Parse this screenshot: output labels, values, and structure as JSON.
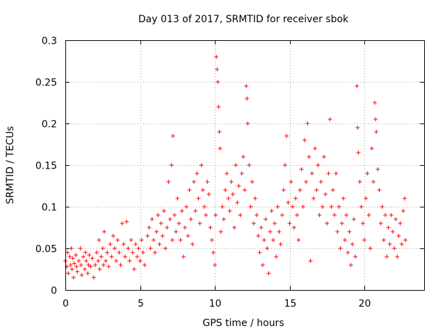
{
  "chart_data": {
    "type": "scatter",
    "title": "Day 013 of 2017, SRMTID for receiver sbok",
    "xlabel": "GPS time / hours",
    "ylabel": "SRMTID / TECUs",
    "xlim": [
      0,
      24
    ],
    "ylim": [
      0,
      0.3
    ],
    "xticks": [
      0,
      5,
      10,
      15,
      20
    ],
    "xtick_labels": [
      "0",
      "5",
      "10",
      "15",
      "20"
    ],
    "yticks": [
      0,
      0.05,
      0.1,
      0.15,
      0.2,
      0.25,
      0.3
    ],
    "ytick_labels": [
      "0",
      "0.05",
      "0.1",
      "0.15",
      "0.2",
      "0.25",
      "0.3"
    ],
    "grid": true,
    "marker": "plus",
    "series": [
      {
        "name": "SRMTID",
        "color": "#ff0000",
        "points": [
          [
            0.0,
            0.035
          ],
          [
            0.1,
            0.028
          ],
          [
            0.15,
            0.045
          ],
          [
            0.2,
            0.02
          ],
          [
            0.3,
            0.04
          ],
          [
            0.35,
            0.03
          ],
          [
            0.4,
            0.05
          ],
          [
            0.45,
            0.025
          ],
          [
            0.5,
            0.038
          ],
          [
            0.55,
            0.015
          ],
          [
            0.6,
            0.032
          ],
          [
            0.7,
            0.042
          ],
          [
            0.75,
            0.028
          ],
          [
            0.8,
            0.022
          ],
          [
            0.9,
            0.035
          ],
          [
            1.0,
            0.05
          ],
          [
            1.05,
            0.03
          ],
          [
            1.1,
            0.018
          ],
          [
            1.2,
            0.04
          ],
          [
            1.3,
            0.025
          ],
          [
            1.35,
            0.045
          ],
          [
            1.4,
            0.035
          ],
          [
            1.5,
            0.02
          ],
          [
            1.55,
            0.03
          ],
          [
            1.6,
            0.042
          ],
          [
            1.7,
            0.028
          ],
          [
            1.8,
            0.038
          ],
          [
            1.9,
            0.015
          ],
          [
            2.0,
            0.03
          ],
          [
            2.1,
            0.045
          ],
          [
            2.2,
            0.035
          ],
          [
            2.25,
            0.06
          ],
          [
            2.3,
            0.025
          ],
          [
            2.4,
            0.04
          ],
          [
            2.5,
            0.05
          ],
          [
            2.55,
            0.03
          ],
          [
            2.6,
            0.07
          ],
          [
            2.7,
            0.035
          ],
          [
            2.8,
            0.045
          ],
          [
            2.9,
            0.028
          ],
          [
            3.0,
            0.055
          ],
          [
            3.1,
            0.04
          ],
          [
            3.2,
            0.065
          ],
          [
            3.3,
            0.05
          ],
          [
            3.4,
            0.035
          ],
          [
            3.5,
            0.06
          ],
          [
            3.6,
            0.045
          ],
          [
            3.7,
            0.03
          ],
          [
            3.8,
            0.08
          ],
          [
            3.9,
            0.055
          ],
          [
            4.0,
            0.04
          ],
          [
            4.1,
            0.082
          ],
          [
            4.2,
            0.05
          ],
          [
            4.3,
            0.035
          ],
          [
            4.4,
            0.06
          ],
          [
            4.5,
            0.045
          ],
          [
            4.6,
            0.025
          ],
          [
            4.7,
            0.055
          ],
          [
            4.8,
            0.04
          ],
          [
            4.9,
            0.05
          ],
          [
            5.0,
            0.035
          ],
          [
            5.1,
            0.06
          ],
          [
            5.2,
            0.045
          ],
          [
            5.3,
            0.03
          ],
          [
            5.5,
            0.065
          ],
          [
            5.6,
            0.075
          ],
          [
            5.7,
            0.05
          ],
          [
            5.8,
            0.085
          ],
          [
            5.9,
            0.06
          ],
          [
            6.0,
            0.045
          ],
          [
            6.1,
            0.07
          ],
          [
            6.2,
            0.09
          ],
          [
            6.3,
            0.055
          ],
          [
            6.4,
            0.08
          ],
          [
            6.5,
            0.065
          ],
          [
            6.6,
            0.095
          ],
          [
            6.7,
            0.05
          ],
          [
            6.8,
            0.075
          ],
          [
            6.9,
            0.13
          ],
          [
            7.0,
            0.085
          ],
          [
            7.1,
            0.15
          ],
          [
            7.15,
            0.06
          ],
          [
            7.2,
            0.185
          ],
          [
            7.3,
            0.09
          ],
          [
            7.4,
            0.07
          ],
          [
            7.5,
            0.11
          ],
          [
            7.6,
            0.08
          ],
          [
            7.7,
            0.06
          ],
          [
            7.8,
            0.095
          ],
          [
            7.9,
            0.04
          ],
          [
            8.0,
            0.075
          ],
          [
            8.1,
            0.1
          ],
          [
            8.2,
            0.065
          ],
          [
            8.3,
            0.12
          ],
          [
            8.4,
            0.085
          ],
          [
            8.5,
            0.055
          ],
          [
            8.6,
            0.13
          ],
          [
            8.7,
            0.095
          ],
          [
            8.8,
            0.14
          ],
          [
            8.9,
            0.11
          ],
          [
            9.0,
            0.08
          ],
          [
            9.1,
            0.15
          ],
          [
            9.2,
            0.12
          ],
          [
            9.3,
            0.1
          ],
          [
            9.4,
            0.09
          ],
          [
            9.5,
            0.13
          ],
          [
            9.6,
            0.115
          ],
          [
            9.7,
            0.075
          ],
          [
            9.8,
            0.06
          ],
          [
            9.9,
            0.045
          ],
          [
            10.0,
            0.03
          ],
          [
            10.05,
            0.09
          ],
          [
            10.1,
            0.28
          ],
          [
            10.15,
            0.265
          ],
          [
            10.2,
            0.25
          ],
          [
            10.25,
            0.22
          ],
          [
            10.3,
            0.19
          ],
          [
            10.35,
            0.17
          ],
          [
            10.4,
            0.07
          ],
          [
            10.5,
            0.1
          ],
          [
            10.6,
            0.085
          ],
          [
            10.7,
            0.12
          ],
          [
            10.8,
            0.14
          ],
          [
            10.9,
            0.11
          ],
          [
            11.0,
            0.095
          ],
          [
            11.1,
            0.13
          ],
          [
            11.2,
            0.115
          ],
          [
            11.3,
            0.075
          ],
          [
            11.4,
            0.15
          ],
          [
            11.5,
            0.105
          ],
          [
            11.6,
            0.125
          ],
          [
            11.7,
            0.09
          ],
          [
            11.8,
            0.14
          ],
          [
            11.9,
            0.16
          ],
          [
            12.0,
            0.12
          ],
          [
            12.1,
            0.245
          ],
          [
            12.15,
            0.23
          ],
          [
            12.2,
            0.2
          ],
          [
            12.3,
            0.15
          ],
          [
            12.4,
            0.1
          ],
          [
            12.5,
            0.13
          ],
          [
            12.6,
            0.08
          ],
          [
            12.7,
            0.11
          ],
          [
            12.8,
            0.09
          ],
          [
            12.9,
            0.065
          ],
          [
            13.0,
            0.045
          ],
          [
            13.1,
            0.075
          ],
          [
            13.2,
            0.03
          ],
          [
            13.3,
            0.06
          ],
          [
            13.4,
            0.085
          ],
          [
            13.5,
            0.05
          ],
          [
            13.6,
            0.02
          ],
          [
            13.7,
            0.07
          ],
          [
            13.8,
            0.095
          ],
          [
            13.9,
            0.06
          ],
          [
            14.0,
            0.08
          ],
          [
            14.1,
            0.04
          ],
          [
            14.2,
            0.1
          ],
          [
            14.3,
            0.07
          ],
          [
            14.4,
            0.055
          ],
          [
            14.5,
            0.09
          ],
          [
            14.6,
            0.12
          ],
          [
            14.7,
            0.15
          ],
          [
            14.8,
            0.185
          ],
          [
            14.9,
            0.105
          ],
          [
            15.0,
            0.08
          ],
          [
            15.1,
            0.13
          ],
          [
            15.2,
            0.1
          ],
          [
            15.3,
            0.075
          ],
          [
            15.4,
            0.11
          ],
          [
            15.5,
            0.09
          ],
          [
            15.6,
            0.06
          ],
          [
            15.7,
            0.12
          ],
          [
            15.8,
            0.145
          ],
          [
            15.9,
            0.1
          ],
          [
            16.0,
            0.18
          ],
          [
            16.1,
            0.13
          ],
          [
            16.2,
            0.2
          ],
          [
            16.3,
            0.16
          ],
          [
            16.4,
            0.035
          ],
          [
            16.5,
            0.14
          ],
          [
            16.6,
            0.11
          ],
          [
            16.7,
            0.17
          ],
          [
            16.8,
            0.12
          ],
          [
            16.9,
            0.15
          ],
          [
            17.0,
            0.09
          ],
          [
            17.1,
            0.13
          ],
          [
            17.2,
            0.1
          ],
          [
            17.3,
            0.16
          ],
          [
            17.4,
            0.115
          ],
          [
            17.5,
            0.08
          ],
          [
            17.6,
            0.14
          ],
          [
            17.7,
            0.205
          ],
          [
            17.8,
            0.1
          ],
          [
            17.9,
            0.12
          ],
          [
            18.0,
            0.09
          ],
          [
            18.1,
            0.14
          ],
          [
            18.2,
            0.07
          ],
          [
            18.3,
            0.1
          ],
          [
            18.4,
            0.05
          ],
          [
            18.5,
            0.08
          ],
          [
            18.6,
            0.11
          ],
          [
            18.7,
            0.06
          ],
          [
            18.8,
            0.09
          ],
          [
            18.9,
            0.045
          ],
          [
            19.0,
            0.07
          ],
          [
            19.1,
            0.03
          ],
          [
            19.2,
            0.055
          ],
          [
            19.3,
            0.085
          ],
          [
            19.4,
            0.04
          ],
          [
            19.5,
            0.245
          ],
          [
            19.55,
            0.195
          ],
          [
            19.6,
            0.165
          ],
          [
            19.7,
            0.13
          ],
          [
            19.8,
            0.1
          ],
          [
            19.9,
            0.08
          ],
          [
            20.0,
            0.06
          ],
          [
            20.1,
            0.11
          ],
          [
            20.2,
            0.14
          ],
          [
            20.3,
            0.09
          ],
          [
            20.4,
            0.05
          ],
          [
            20.5,
            0.17
          ],
          [
            20.6,
            0.13
          ],
          [
            20.7,
            0.225
          ],
          [
            20.75,
            0.205
          ],
          [
            20.8,
            0.19
          ],
          [
            20.9,
            0.145
          ],
          [
            21.0,
            0.12
          ],
          [
            21.1,
            0.08
          ],
          [
            21.2,
            0.1
          ],
          [
            21.3,
            0.06
          ],
          [
            21.4,
            0.09
          ],
          [
            21.5,
            0.04
          ],
          [
            21.6,
            0.075
          ],
          [
            21.7,
            0.055
          ],
          [
            21.8,
            0.09
          ],
          [
            21.9,
            0.07
          ],
          [
            22.0,
            0.05
          ],
          [
            22.1,
            0.085
          ],
          [
            22.2,
            0.04
          ],
          [
            22.3,
            0.065
          ],
          [
            22.4,
            0.08
          ],
          [
            22.5,
            0.055
          ],
          [
            22.6,
            0.095
          ],
          [
            22.7,
            0.11
          ],
          [
            22.75,
            0.06
          ]
        ]
      }
    ]
  }
}
